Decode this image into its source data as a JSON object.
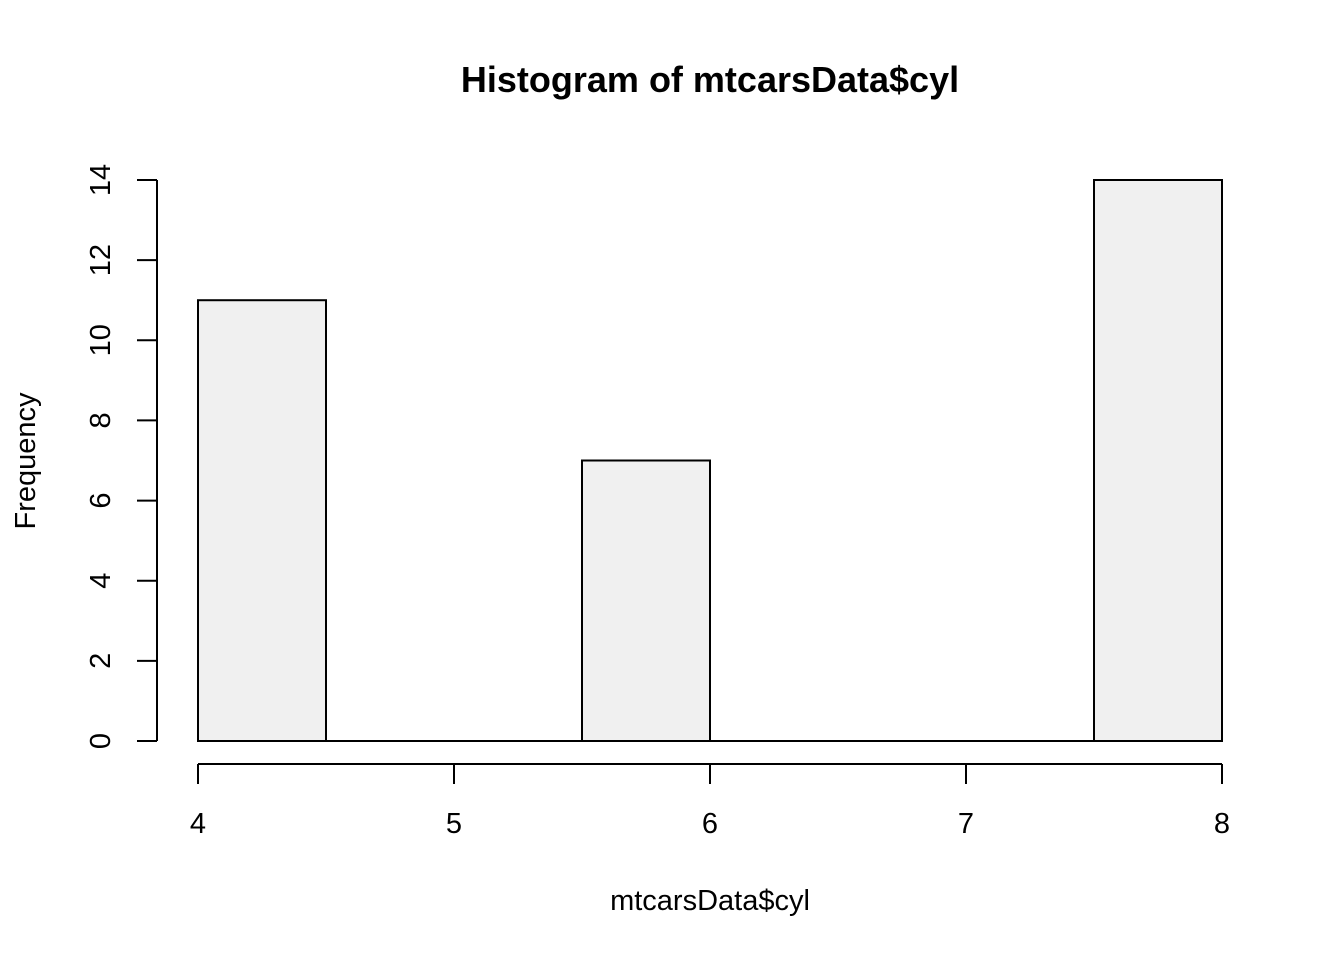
{
  "chart_data": {
    "type": "bar",
    "title": "Histogram of mtcarsData$cyl",
    "xlabel": "mtcarsData$cyl",
    "ylabel": "Frequency",
    "bins": [
      {
        "start": 4.0,
        "end": 4.5,
        "count": 11
      },
      {
        "start": 4.5,
        "end": 5.0,
        "count": 0
      },
      {
        "start": 5.0,
        "end": 5.5,
        "count": 0
      },
      {
        "start": 5.5,
        "end": 6.0,
        "count": 7
      },
      {
        "start": 6.0,
        "end": 6.5,
        "count": 0
      },
      {
        "start": 6.5,
        "end": 7.0,
        "count": 0
      },
      {
        "start": 7.0,
        "end": 7.5,
        "count": 0
      },
      {
        "start": 7.5,
        "end": 8.0,
        "count": 14
      }
    ],
    "xlim": [
      4,
      8
    ],
    "ylim": [
      0,
      14
    ],
    "xticks": [
      "4",
      "5",
      "6",
      "7",
      "8"
    ],
    "yticks": [
      "0",
      "2",
      "4",
      "6",
      "8",
      "10",
      "12",
      "14"
    ],
    "bar_fill": "#f0f0f0",
    "bar_stroke": "#000000",
    "grid": false
  }
}
